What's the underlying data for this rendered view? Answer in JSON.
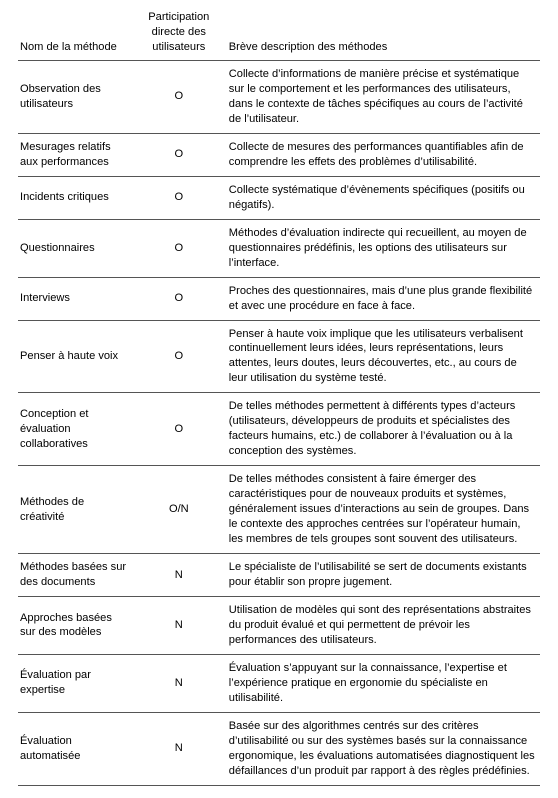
{
  "table": {
    "columns": [
      {
        "key": "method",
        "label": "Nom de la méthode",
        "width": "22%",
        "align": "left"
      },
      {
        "key": "participation",
        "label": "Participation directe des utilisateurs",
        "width": "18%",
        "align": "center"
      },
      {
        "key": "description",
        "label": "Brève description des méthodes",
        "width": "60%",
        "align": "left"
      }
    ],
    "rows": [
      {
        "method": "Observation des utilisateurs",
        "participation": "O",
        "description": "Collecte d’informations de manière précise et systématique sur le comportement et les performances des utilisateurs, dans le contexte de tâches spécifiques au cours de l’activité de l’utilisateur."
      },
      {
        "method": "Mesurages relatifs aux performances",
        "participation": "O",
        "description": "Collecte de mesures des performances quantifiables afin de comprendre les effets des problèmes d’utilisabilité."
      },
      {
        "method": "Incidents critiques",
        "participation": "O",
        "description": "Collecte systématique d’évènements spécifiques (positifs ou négatifs)."
      },
      {
        "method": "Questionnaires",
        "participation": "O",
        "description": "Méthodes d’évaluation indirecte qui recueillent, au moyen de questionnaires prédéfinis, les options des utilisateurs sur l’interface."
      },
      {
        "method": "Interviews",
        "participation": "O",
        "description": "Proches des questionnaires, mais d’une plus grande flexibilité et avec une procédure en face à face."
      },
      {
        "method": "Penser à haute voix",
        "participation": "O",
        "description": "Penser à haute voix implique que les utilisateurs verbalisent continuellement leurs idées, leurs représentations, leurs attentes, leurs doutes, leurs découvertes, etc., au cours de leur utilisation du système testé."
      },
      {
        "method": "Conception et évaluation collaboratives",
        "participation": "O",
        "description": "De telles méthodes permettent à différents types d’acteurs (utilisateurs, développeurs de produits et spécialistes des facteurs humains, etc.) de collaborer à l’évaluation ou à la conception des systèmes."
      },
      {
        "method": "Méthodes de créativité",
        "participation": "O/N",
        "description": "De telles méthodes consistent à faire émerger des caractéristiques pour de nouveaux produits et systèmes, généralement issues d’interactions au sein de groupes. Dans le contexte des approches centrées sur l’opérateur humain, les membres de tels groupes sont souvent des utilisateurs."
      },
      {
        "method": "Méthodes basées sur des documents",
        "participation": "N",
        "description": "Le spécialiste de l’utilisabilité se sert de documents existants pour établir son propre jugement."
      },
      {
        "method": "Approches basées sur des modèles",
        "participation": "N",
        "description": "Utilisation de modèles qui sont des représentations abstraites du produit évalué et qui permettent de prévoir les performances des utilisateurs."
      },
      {
        "method": "Évaluation par expertise",
        "participation": "N",
        "description": "Évaluation s’appuyant sur la connaissance, l’expertise et l’expérience pratique en ergonomie du spécialiste en utilisabilité."
      },
      {
        "method": "Évaluation automatisée",
        "participation": "N",
        "description": "Basée sur des algorithmes centrés sur des critères d’utilisabilité ou sur des systèmes basés sur la connaissance ergonomique, les évaluations automatisées diagnostiquent les défaillances d’un produit par rapport à des règles prédéfinies."
      }
    ],
    "styling": {
      "font_family": "Arial",
      "font_size_pt": 8.3,
      "line_height": 1.35,
      "border_color": "#555555",
      "text_color": "#000000",
      "background_color": "#ffffff"
    }
  }
}
